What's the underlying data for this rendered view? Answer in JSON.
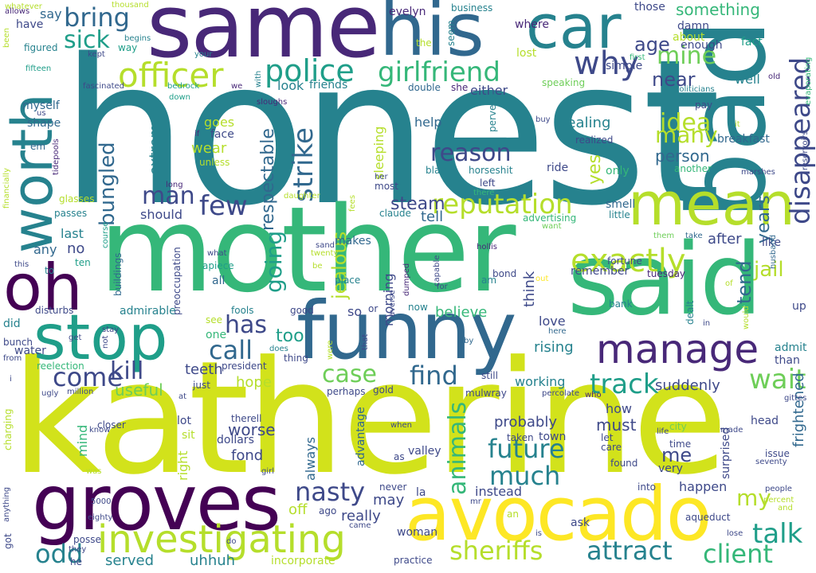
{
  "palette": {
    "dark_purple": "#440154",
    "purple": "#482878",
    "indigo": "#3e4989",
    "blue": "#31688e",
    "teal": "#26828e",
    "green_teal": "#1f9e89",
    "green": "#35b779",
    "light_green": "#6ece58",
    "lime": "#b5de2b",
    "yellow": "#fde725"
  },
  "words": [
    "honest",
    "katherine",
    "mother",
    "said",
    "same",
    "bad",
    "funny",
    "his",
    "car",
    "groves",
    "avocado",
    "mean",
    "stop",
    "oh",
    "worth",
    "manage",
    "investigating",
    "officer",
    "police",
    "reputation",
    "exactly",
    "girlfriend",
    "why",
    "bring",
    "sick",
    "mine",
    "disappeared",
    "strike",
    "bungled",
    "few",
    "call",
    "has",
    "man",
    "kill",
    "come",
    "find",
    "case",
    "track",
    "wait",
    "talk",
    "sheriffs",
    "attract",
    "client",
    "future",
    "much",
    "animals",
    "nasty",
    "odd",
    "idea",
    "many",
    "reason",
    "steam",
    "going",
    "respectable",
    "jealous",
    "my",
    "jail",
    "tend",
    "years",
    "age",
    "near",
    "something",
    "those",
    "business",
    "evelyn",
    "where",
    "damn",
    "about",
    "enough",
    "fact",
    "whatever",
    "thousand",
    "allows",
    "have",
    "say",
    "figured",
    "fifteen",
    "been",
    "begins",
    "way",
    "kept",
    "your",
    "first",
    "the",
    "seem",
    "lost",
    "simple",
    "look",
    "friends",
    "speaking",
    "double",
    "she",
    "either",
    "fascinated",
    "bedrock",
    "we",
    "with",
    "sloughs",
    "down",
    "politicians",
    "well",
    "old",
    "pay",
    "evaporating",
    "reservoirs",
    "myself",
    "us",
    "help",
    "perverse",
    "buy",
    "it",
    "dealing",
    "goes",
    "face",
    "wear",
    "extremely",
    "if",
    "unless",
    "shape",
    "em",
    "tidepools",
    "sleeping",
    "realized",
    "breakfast",
    "yes",
    "person",
    "blame",
    "horseshit",
    "ride",
    "only",
    "another",
    "marshes",
    "financially",
    "long",
    "glasses",
    "passes",
    "most",
    "claude",
    "tell",
    "left",
    "smell",
    "little",
    "there",
    "advertising",
    "want",
    "her",
    "fees",
    "daughter",
    "should",
    "last",
    "no",
    "ten",
    "any",
    "to",
    "this",
    "course",
    "buildings",
    "what",
    "apiece",
    "all",
    "twenty",
    "sand",
    "be",
    "makes",
    "hollis",
    "capable",
    "bond",
    "am",
    "fortune",
    "them",
    "take",
    "like",
    "husband",
    "after",
    "think",
    "remember",
    "tuesday",
    "of",
    "dumped",
    "place",
    "morning",
    "so",
    "rising",
    "out",
    "bank",
    "preoccupation",
    "admirable",
    "disturbs",
    "did",
    "fools",
    "good",
    "or",
    "now",
    "believe",
    "love",
    "dealt",
    "in",
    "would",
    "up",
    "see",
    "one",
    "averse",
    "too",
    "for",
    "here",
    "admit",
    "bunch",
    "water",
    "from",
    "get",
    "not",
    "stay",
    "does",
    "thing",
    "that",
    "were",
    "by",
    "i",
    "reelection",
    "teeth",
    "president",
    "than",
    "frightened",
    "useful",
    "hope",
    "working",
    "suddenly",
    "ugly",
    "million",
    "at",
    "just",
    "gold",
    "perhaps",
    "still",
    "percolate",
    "who",
    "gittes",
    "charging",
    "advantage",
    "mulwray",
    "always",
    "worse",
    "therell",
    "when",
    "probably",
    "must",
    "how",
    "head",
    "know",
    "closer",
    "lot",
    "sit",
    "right",
    "mind",
    "dollars",
    "city",
    "life",
    "made",
    "anything",
    "fond",
    "valley",
    "town",
    "taken",
    "let",
    "care",
    "time",
    "issue",
    "seventy",
    "was",
    "girl",
    "surprised",
    "got",
    "as",
    "me",
    "found",
    "very",
    "5000",
    "off",
    "ago",
    "la",
    "instead",
    "happen",
    "into",
    "people",
    "percent",
    "and",
    "eighty",
    "may",
    "really",
    "never",
    "mr",
    "an",
    "aqueduct",
    "posse",
    "woman",
    "ask",
    "came",
    "practice",
    "lose",
    "he",
    "they",
    "served",
    "uhhuh",
    "incorporate",
    "do",
    "is"
  ]
}
